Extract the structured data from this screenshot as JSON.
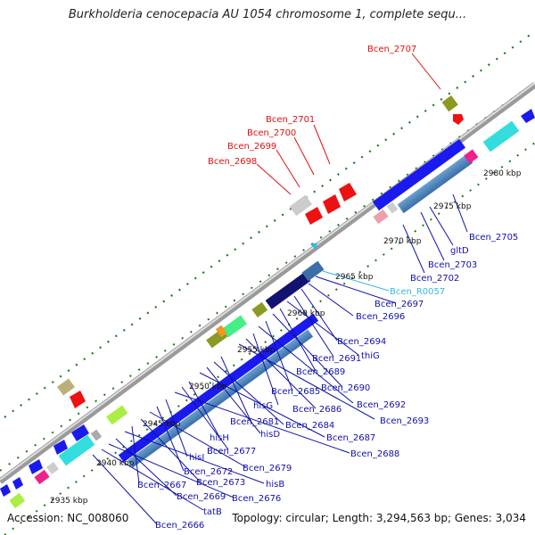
{
  "title": "Burkholderia cenocepacia AU 1054 chromosome 1, complete sequ...",
  "footer": {
    "accession": "Accession: NC_008060",
    "summary": "Topology: circular; Length: 3,294,563 bp; Genes: 3,034"
  },
  "colors": {
    "red_label": "#dd1111",
    "blue_label": "#1111aa",
    "cyan_label": "#33bbdd",
    "cds_blue": "#1a1aee",
    "backbone": "#888888",
    "tick": "#1a7a1a"
  },
  "scale_labels": [
    "2935 kbp",
    "2940 kbp",
    "2945 kbp",
    "2950 kbp",
    "2955 kbp",
    "2960 kbp",
    "2965 kbp",
    "2970 kbp",
    "2975 kbp",
    "2980 kbp"
  ],
  "upper_labels": [
    "Bcen_2707",
    "Bcen_2701",
    "Bcen_2700",
    "Bcen_2699",
    "Bcen_2698"
  ],
  "lower_labels": [
    {
      "text": "Bcen_2705",
      "color": "blue"
    },
    {
      "text": "gltD",
      "color": "blue"
    },
    {
      "text": "Bcen_2703",
      "color": "blue"
    },
    {
      "text": "Bcen_2702",
      "color": "blue"
    },
    {
      "text": "Bcen_R0057",
      "color": "cyan"
    },
    {
      "text": "Bcen_2697",
      "color": "blue"
    },
    {
      "text": "Bcen_2696",
      "color": "blue"
    },
    {
      "text": "Bcen_2694",
      "color": "blue"
    },
    {
      "text": "Bcen_2691",
      "color": "blue"
    },
    {
      "text": "thiG",
      "color": "blue"
    },
    {
      "text": "Bcen_2689",
      "color": "blue"
    },
    {
      "text": "Bcen_2690",
      "color": "blue"
    },
    {
      "text": "Bcen_2685",
      "color": "blue"
    },
    {
      "text": "Bcen_2692",
      "color": "blue"
    },
    {
      "text": "hisG",
      "color": "blue"
    },
    {
      "text": "Bcen_2686",
      "color": "blue"
    },
    {
      "text": "Bcen_2693",
      "color": "blue"
    },
    {
      "text": "Bcen_2681",
      "color": "blue"
    },
    {
      "text": "Bcen_2684",
      "color": "blue"
    },
    {
      "text": "hisD",
      "color": "blue"
    },
    {
      "text": "Bcen_2687",
      "color": "blue"
    },
    {
      "text": "hisH",
      "color": "blue"
    },
    {
      "text": "Bcen_2677",
      "color": "blue"
    },
    {
      "text": "Bcen_2688",
      "color": "blue"
    },
    {
      "text": "hisI",
      "color": "blue"
    },
    {
      "text": "Bcen_2672",
      "color": "blue"
    },
    {
      "text": "Bcen_2679",
      "color": "blue"
    },
    {
      "text": "Bcen_2673",
      "color": "blue"
    },
    {
      "text": "Bcen_2667",
      "color": "blue"
    },
    {
      "text": "hisB",
      "color": "blue"
    },
    {
      "text": "Bcen_2669",
      "color": "blue"
    },
    {
      "text": "Bcen_2676",
      "color": "blue"
    },
    {
      "text": "tatB",
      "color": "blue"
    },
    {
      "text": "Bcen_2666",
      "color": "blue"
    }
  ]
}
